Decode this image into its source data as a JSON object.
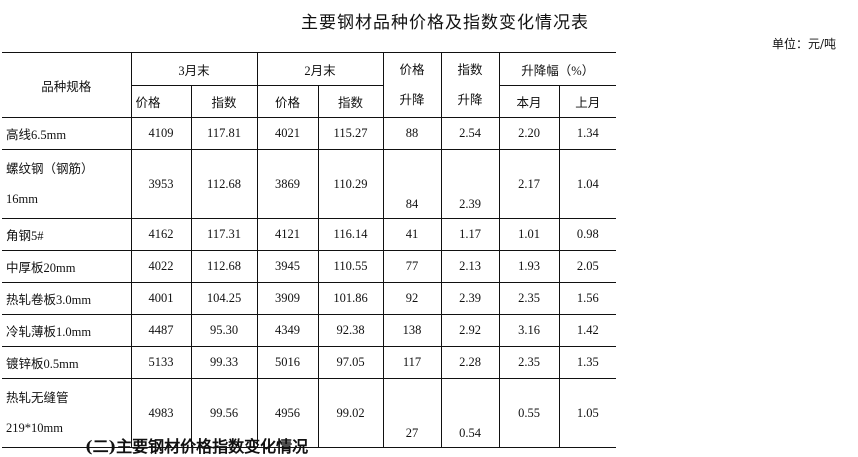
{
  "title": "主要钢材品种价格及指数变化情况表",
  "unit": "单位：元/吨",
  "headers": {
    "variety": "品种规格",
    "march": "3月末",
    "feb": "2月末",
    "price_change_1": "价格",
    "price_change_2": "升降",
    "index_change_1": "指数",
    "index_change_2": "升降",
    "range": "升降幅（%）",
    "price": "价格",
    "index": "指数",
    "this_month": "本月",
    "last_month": "上月"
  },
  "rows": [
    {
      "name": "高线6.5mm",
      "mp": "4109",
      "mi": "117.81",
      "fp": "4021",
      "fi": "115.27",
      "pc": "88",
      "ic": "2.54",
      "tm": "2.20",
      "lm": "1.34"
    },
    {
      "name": "螺纹钢（钢筋）",
      "name2": "16mm",
      "mp": "3953",
      "mi": "112.68",
      "fp": "3869",
      "fi": "110.29",
      "pc": "84",
      "ic": "2.39",
      "tm": "2.17",
      "lm": "1.04"
    },
    {
      "name": "角钢5#",
      "mp": "4162",
      "mi": "117.31",
      "fp": "4121",
      "fi": "116.14",
      "pc": "41",
      "ic": "1.17",
      "tm": "1.01",
      "lm": "0.98"
    },
    {
      "name": "中厚板20mm",
      "mp": "4022",
      "mi": "112.68",
      "fp": "3945",
      "fi": "110.55",
      "pc": "77",
      "ic": "2.13",
      "tm": "1.93",
      "lm": "2.05"
    },
    {
      "name": "热轧卷板3.0mm",
      "mp": "4001",
      "mi": "104.25",
      "fp": "3909",
      "fi": "101.86",
      "pc": "92",
      "ic": "2.39",
      "tm": "2.35",
      "lm": "1.56"
    },
    {
      "name": "冷轧薄板1.0mm",
      "mp": "4487",
      "mi": "95.30",
      "fp": "4349",
      "fi": "92.38",
      "pc": "138",
      "ic": "2.92",
      "tm": "3.16",
      "lm": "1.42"
    },
    {
      "name": "镀锌板0.5mm",
      "mp": "5133",
      "mi": "99.33",
      "fp": "5016",
      "fi": "97.05",
      "pc": "117",
      "ic": "2.28",
      "tm": "2.35",
      "lm": "1.35"
    },
    {
      "name": "热轧无缝管",
      "name2": "219*10mm",
      "mp": "4983",
      "mi": "99.56",
      "fp": "4956",
      "fi": "99.02",
      "pc": "27",
      "ic": "0.54",
      "tm": "0.55",
      "lm": "1.05"
    }
  ],
  "footer": "(二)主要钢材价格指数变化情况"
}
